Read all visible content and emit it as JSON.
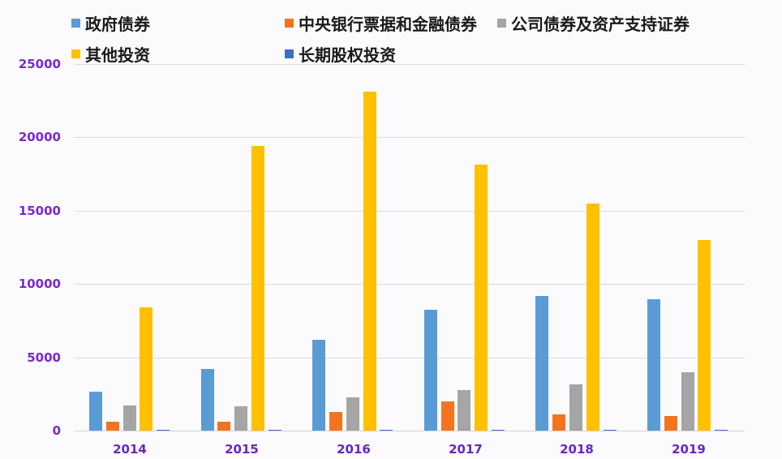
{
  "chart_data": {
    "type": "bar",
    "title": "",
    "xlabel": "",
    "ylabel": "",
    "ylim": [
      0,
      25000
    ],
    "yticks": [
      0,
      5000,
      10000,
      15000,
      20000,
      25000
    ],
    "ytick_labels": [
      "0",
      "5000",
      "10000",
      "15000",
      "20000",
      "25000"
    ],
    "grid": true,
    "legend_position": "top",
    "categories": [
      "2014",
      "2015",
      "2016",
      "2017",
      "2018",
      "2019"
    ],
    "series": [
      {
        "name": "政府债券",
        "color": "#5b9bd5",
        "values": [
          2650,
          4200,
          6200,
          8250,
          9200,
          8950
        ]
      },
      {
        "name": "中央银行票据和金融债券",
        "color": "#f47321",
        "values": [
          600,
          600,
          1270,
          1990,
          1100,
          1000
        ]
      },
      {
        "name": "公司债券及资产支持证券",
        "color": "#a5a5a5",
        "values": [
          1720,
          1660,
          2270,
          2770,
          3150,
          4000
        ]
      },
      {
        "name": "其他投资",
        "color": "#ffc000",
        "values": [
          8400,
          19400,
          23100,
          18150,
          15500,
          13000
        ]
      },
      {
        "name": "长期股权投资",
        "color": "#3a6fc4",
        "values": [
          50,
          50,
          50,
          50,
          50,
          50
        ]
      }
    ]
  },
  "legend": {
    "items": [
      {
        "label": "政府债券",
        "color": "#5b9bd5"
      },
      {
        "label": "中央银行票据和金融债券",
        "color": "#f47321"
      },
      {
        "label": "公司债券及资产支持证券",
        "color": "#a5a5a5"
      },
      {
        "label": "其他投资",
        "color": "#ffc000"
      },
      {
        "label": "长期股权投资",
        "color": "#3a6fc4"
      }
    ]
  },
  "axis": {
    "y_labels": [
      "25000",
      "20000",
      "15000",
      "10000",
      "5000",
      "0"
    ],
    "x_labels": [
      "2014",
      "2015",
      "2016",
      "2017",
      "2018",
      "2019"
    ]
  }
}
